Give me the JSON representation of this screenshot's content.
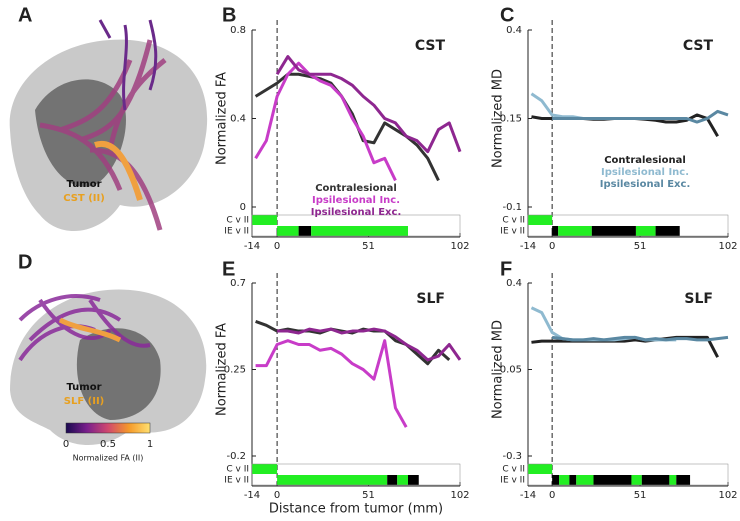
{
  "panel_labels": [
    "A",
    "B",
    "C",
    "D",
    "E",
    "F"
  ],
  "images": [
    {
      "labels": [
        "Tumor",
        "CST (II)"
      ]
    },
    {
      "labels": [
        "Tumor",
        "SLF (II)"
      ]
    }
  ],
  "colorbar": {
    "ticks": [
      0,
      0.5,
      1
    ],
    "label": "Normalized FA (II)",
    "colors": [
      "#1a0a50",
      "#7a1f8c",
      "#d0486e",
      "#f59a2a",
      "#ffe070"
    ]
  },
  "chart_data": [
    {
      "type": "line",
      "title": "CST",
      "ylabel": "Normalized FA",
      "xlim": [
        -14,
        102
      ],
      "ylim": [
        0,
        0.8
      ],
      "xticks": [
        -14,
        0,
        51,
        102
      ],
      "yticks": [
        0,
        0.4,
        0.8
      ],
      "legend": "lower center",
      "x": [
        -12,
        -6,
        0,
        6,
        12,
        18,
        24,
        30,
        36,
        42,
        48,
        54,
        60,
        66,
        72,
        78,
        84,
        90,
        96,
        102
      ],
      "series": [
        {
          "name": "Contralesional",
          "color": "#333333",
          "values": [
            0.5,
            0.53,
            0.56,
            0.6,
            0.6,
            0.59,
            0.58,
            0.56,
            0.5,
            0.42,
            0.3,
            0.29,
            0.38,
            0.35,
            0.32,
            0.28,
            0.22,
            0.12,
            null,
            null
          ]
        },
        {
          "name": "Ipsilesional Inc.",
          "color": "#c83cc8",
          "values": [
            0.22,
            0.3,
            0.5,
            0.6,
            0.65,
            0.6,
            0.57,
            0.55,
            0.5,
            0.4,
            0.32,
            0.2,
            0.22,
            0.12,
            null,
            null,
            null,
            null,
            null,
            null
          ]
        },
        {
          "name": "Ipsilesional Exc.",
          "color": "#8e2790",
          "values": [
            null,
            null,
            0.6,
            0.68,
            0.62,
            0.6,
            0.6,
            0.6,
            0.58,
            0.55,
            0.5,
            0.46,
            0.4,
            0.38,
            0.32,
            0.3,
            0.25,
            0.35,
            0.38,
            0.25
          ]
        }
      ],
      "sig_rows": [
        {
          "label": "C v II",
          "segments": [
            {
              "from": -14,
              "to": 0,
              "color": "#22ee22"
            }
          ]
        },
        {
          "label": "IE v II",
          "segments": [
            {
              "from": 0,
              "to": 12,
              "color": "#22ee22"
            },
            {
              "from": 12,
              "to": 19,
              "color": "#000000"
            },
            {
              "from": 19,
              "to": 73,
              "color": "#22ee22"
            }
          ]
        }
      ]
    },
    {
      "type": "line",
      "title": "CST",
      "ylabel": "Normalized MD",
      "xlim": [
        -14,
        102
      ],
      "ylim": [
        -0.1,
        0.4
      ],
      "xticks": [
        -14,
        0,
        51,
        102
      ],
      "yticks": [
        -0.1,
        0.15,
        0.4
      ],
      "legend": "center right",
      "x": [
        -12,
        -6,
        0,
        6,
        12,
        18,
        24,
        30,
        36,
        42,
        48,
        54,
        60,
        66,
        72,
        78,
        84,
        90,
        96,
        102
      ],
      "series": [
        {
          "name": "Contralesional",
          "color": "#222222",
          "values": [
            0.155,
            0.15,
            0.15,
            0.15,
            0.15,
            0.15,
            0.148,
            0.148,
            0.15,
            0.15,
            0.15,
            0.148,
            0.145,
            0.14,
            0.14,
            0.145,
            0.16,
            0.15,
            0.1,
            null
          ]
        },
        {
          "name": "Ipsilesional Inc.",
          "color": "#8fbad0",
          "values": [
            0.22,
            0.2,
            0.16,
            0.155,
            0.155,
            0.15,
            0.15,
            0.15,
            0.15,
            0.15,
            0.15,
            0.15,
            0.15,
            0.15,
            0.15,
            null,
            null,
            null,
            null,
            null
          ]
        },
        {
          "name": "Ipsilesional Exc.",
          "color": "#5a88a2",
          "values": [
            null,
            null,
            0.15,
            0.15,
            0.15,
            0.15,
            0.15,
            0.15,
            0.15,
            0.15,
            0.15,
            0.15,
            0.15,
            0.15,
            0.15,
            0.15,
            0.14,
            0.15,
            0.17,
            0.16
          ]
        }
      ],
      "sig_rows": [
        {
          "label": "C v II",
          "segments": [
            {
              "from": -14,
              "to": 0,
              "color": "#22ee22"
            }
          ]
        },
        {
          "label": "IE v II",
          "segments": [
            {
              "from": 0,
              "to": 3.5,
              "color": "#000000"
            },
            {
              "from": 3.5,
              "to": 23,
              "color": "#22ee22"
            },
            {
              "from": 23,
              "to": 48.6,
              "color": "#000000"
            },
            {
              "from": 48.6,
              "to": 60,
              "color": "#22ee22"
            },
            {
              "from": 60,
              "to": 74,
              "color": "#000000"
            }
          ]
        }
      ]
    },
    {
      "type": "line",
      "title": "SLF",
      "ylabel": "Normalized FA",
      "xlabel": "Distance from tumor (mm)",
      "xlim": [
        -14,
        102
      ],
      "ylim": [
        -0.2,
        0.7
      ],
      "xticks": [
        -14,
        0,
        51,
        102
      ],
      "yticks": [
        -0.2,
        0.25,
        0.7
      ],
      "x": [
        -12,
        -6,
        0,
        6,
        12,
        18,
        24,
        30,
        36,
        42,
        48,
        54,
        60,
        66,
        72,
        78,
        84,
        90,
        96,
        102
      ],
      "series": [
        {
          "color": "#333333",
          "values": [
            0.5,
            0.48,
            0.45,
            0.46,
            0.45,
            0.45,
            0.44,
            0.46,
            0.45,
            0.44,
            0.46,
            0.45,
            0.45,
            0.4,
            0.38,
            0.33,
            0.28,
            0.35,
            0.3,
            null
          ]
        },
        {
          "color": "#c83cc8",
          "values": [
            0.27,
            0.27,
            0.38,
            0.4,
            0.38,
            0.38,
            0.35,
            0.36,
            0.33,
            0.28,
            0.25,
            0.2,
            0.4,
            0.05,
            -0.05,
            null,
            null,
            null,
            null,
            null
          ]
        },
        {
          "color": "#8e2790",
          "values": [
            null,
            null,
            0.45,
            0.45,
            0.44,
            0.46,
            0.45,
            0.46,
            0.44,
            0.45,
            0.45,
            0.46,
            0.45,
            0.42,
            0.38,
            0.35,
            0.3,
            0.32,
            0.38,
            0.3
          ]
        }
      ],
      "sig_rows": [
        {
          "label": "C v II",
          "segments": [
            {
              "from": -14,
              "to": 0,
              "color": "#22ee22"
            }
          ]
        },
        {
          "label": "IE v II",
          "segments": [
            {
              "from": 0,
              "to": 61.4,
              "color": "#22ee22"
            },
            {
              "from": 61.4,
              "to": 67,
              "color": "#000000"
            },
            {
              "from": 67,
              "to": 73,
              "color": "#22ee22"
            },
            {
              "from": 73,
              "to": 79,
              "color": "#000000"
            }
          ]
        }
      ]
    },
    {
      "type": "line",
      "title": "SLF",
      "ylabel": "Normalized MD",
      "xlim": [
        -14,
        102
      ],
      "ylim": [
        -0.3,
        0.4
      ],
      "xticks": [
        -14,
        0,
        51,
        102
      ],
      "yticks": [
        -0.3,
        0.05,
        0.4
      ],
      "x": [
        -12,
        -6,
        0,
        6,
        12,
        18,
        24,
        30,
        36,
        42,
        48,
        54,
        60,
        66,
        72,
        78,
        84,
        90,
        96,
        102
      ],
      "series": [
        {
          "color": "#222222",
          "values": [
            0.16,
            0.165,
            0.165,
            0.165,
            0.165,
            0.165,
            0.165,
            0.165,
            0.165,
            0.165,
            0.17,
            0.165,
            0.17,
            0.175,
            0.18,
            0.18,
            0.18,
            0.18,
            0.1,
            null
          ]
        },
        {
          "color": "#8fbad0",
          "values": [
            0.3,
            0.28,
            0.2,
            0.175,
            0.17,
            0.17,
            0.17,
            0.17,
            0.17,
            0.175,
            0.18,
            0.17,
            0.17,
            0.17,
            0.17,
            null,
            null,
            null,
            null,
            null
          ]
        },
        {
          "color": "#5a88a2",
          "values": [
            null,
            null,
            0.18,
            0.175,
            0.17,
            0.17,
            0.175,
            0.17,
            0.175,
            0.18,
            0.18,
            0.17,
            0.175,
            0.17,
            0.175,
            0.175,
            0.17,
            0.17,
            0.175,
            0.18
          ]
        }
      ],
      "sig_rows": [
        {
          "label": "C v II",
          "segments": [
            {
              "from": -14,
              "to": 0,
              "color": "#22ee22"
            }
          ]
        },
        {
          "label": "IE v II",
          "segments": [
            {
              "from": 0,
              "to": 4,
              "color": "#000000"
            },
            {
              "from": 4,
              "to": 10,
              "color": "#22ee22"
            },
            {
              "from": 10,
              "to": 14,
              "color": "#000000"
            },
            {
              "from": 14,
              "to": 24,
              "color": "#22ee22"
            },
            {
              "from": 24,
              "to": 46,
              "color": "#000000"
            },
            {
              "from": 46,
              "to": 52,
              "color": "#22ee22"
            },
            {
              "from": 52,
              "to": 68,
              "color": "#000000"
            },
            {
              "from": 68,
              "to": 72,
              "color": "#22ee22"
            },
            {
              "from": 72,
              "to": 80,
              "color": "#000000"
            }
          ]
        }
      ]
    }
  ]
}
